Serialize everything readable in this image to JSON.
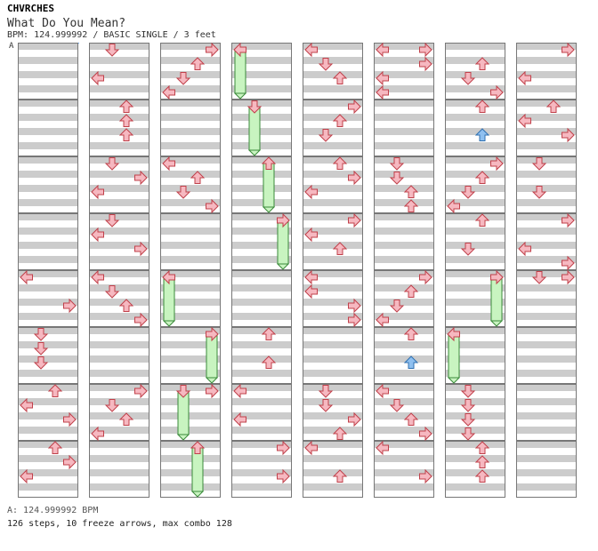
{
  "header": {
    "artist": "CHVRCHES",
    "title": "What Do You Mean?",
    "meta": "BPM: 124.999992 / BASIC SINGLE / 3 feet",
    "bpm_marker": "A"
  },
  "footer": {
    "bpm_line": "A: 124.999992 BPM",
    "stats_line": "126 steps, 10 freeze arrows, max combo 128"
  },
  "chart_data": {
    "type": "stepchart",
    "columns": 8,
    "measures_per_column": 8,
    "lanes": [
      "left",
      "down",
      "up",
      "right"
    ],
    "colors": {
      "tap": "#f6b8c0",
      "tap_stroke": "#c0404a",
      "shock": "#8fc0f0",
      "shock_stroke": "#3070b0",
      "freeze": "#c8f4c0",
      "freeze_stroke": "#3a8a3a",
      "stripe": "#cccccc"
    },
    "notes": [
      {
        "c": 0,
        "m": 4,
        "b": 0,
        "d": "left"
      },
      {
        "c": 0,
        "m": 4,
        "b": 2,
        "d": "right"
      },
      {
        "c": 0,
        "m": 5,
        "b": 0,
        "d": "down"
      },
      {
        "c": 0,
        "m": 5,
        "b": 1,
        "d": "down"
      },
      {
        "c": 0,
        "m": 5,
        "b": 2,
        "d": "down"
      },
      {
        "c": 0,
        "m": 6,
        "b": 0,
        "d": "up"
      },
      {
        "c": 0,
        "m": 6,
        "b": 1,
        "d": "left"
      },
      {
        "c": 0,
        "m": 6,
        "b": 2,
        "d": "right"
      },
      {
        "c": 0,
        "m": 7,
        "b": 0,
        "d": "up"
      },
      {
        "c": 0,
        "m": 7,
        "b": 1,
        "d": "right"
      },
      {
        "c": 0,
        "m": 7,
        "b": 2,
        "d": "left"
      },
      {
        "c": 1,
        "m": 0,
        "b": 0,
        "d": "down"
      },
      {
        "c": 1,
        "m": 0,
        "b": 2,
        "d": "left"
      },
      {
        "c": 1,
        "m": 1,
        "b": 0,
        "d": "up"
      },
      {
        "c": 1,
        "m": 1,
        "b": 1,
        "d": "up"
      },
      {
        "c": 1,
        "m": 1,
        "b": 2,
        "d": "up"
      },
      {
        "c": 1,
        "m": 2,
        "b": 0,
        "d": "down"
      },
      {
        "c": 1,
        "m": 2,
        "b": 1,
        "d": "right"
      },
      {
        "c": 1,
        "m": 2,
        "b": 2,
        "d": "left"
      },
      {
        "c": 1,
        "m": 3,
        "b": 0,
        "d": "down"
      },
      {
        "c": 1,
        "m": 3,
        "b": 1,
        "d": "left"
      },
      {
        "c": 1,
        "m": 3,
        "b": 2,
        "d": "right"
      },
      {
        "c": 1,
        "m": 4,
        "b": 0,
        "d": "left"
      },
      {
        "c": 1,
        "m": 4,
        "b": 1,
        "d": "down"
      },
      {
        "c": 1,
        "m": 4,
        "b": 2,
        "d": "up"
      },
      {
        "c": 1,
        "m": 4,
        "b": 3,
        "d": "right"
      },
      {
        "c": 1,
        "m": 6,
        "b": 0,
        "d": "right"
      },
      {
        "c": 1,
        "m": 6,
        "b": 1,
        "d": "down"
      },
      {
        "c": 1,
        "m": 6,
        "b": 2,
        "d": "up"
      },
      {
        "c": 1,
        "m": 6,
        "b": 3,
        "d": "left"
      },
      {
        "c": 2,
        "m": 0,
        "b": 0,
        "d": "right"
      },
      {
        "c": 2,
        "m": 0,
        "b": 1,
        "d": "up"
      },
      {
        "c": 2,
        "m": 0,
        "b": 2,
        "d": "down"
      },
      {
        "c": 2,
        "m": 0,
        "b": 3,
        "d": "left"
      },
      {
        "c": 2,
        "m": 2,
        "b": 0,
        "d": "left"
      },
      {
        "c": 2,
        "m": 2,
        "b": 1,
        "d": "up"
      },
      {
        "c": 2,
        "m": 2,
        "b": 2,
        "d": "down"
      },
      {
        "c": 2,
        "m": 2,
        "b": 3,
        "d": "right"
      },
      {
        "c": 2,
        "m": 6,
        "b": 0,
        "d": "right"
      },
      {
        "c": 3,
        "m": 5,
        "b": 0,
        "d": "up"
      },
      {
        "c": 3,
        "m": 5,
        "b": 2,
        "d": "up"
      },
      {
        "c": 3,
        "m": 6,
        "b": 0,
        "d": "left"
      },
      {
        "c": 3,
        "m": 6,
        "b": 2,
        "d": "left"
      },
      {
        "c": 3,
        "m": 7,
        "b": 0,
        "d": "right"
      },
      {
        "c": 3,
        "m": 7,
        "b": 2,
        "d": "right"
      },
      {
        "c": 4,
        "m": 0,
        "b": 0,
        "d": "left"
      },
      {
        "c": 4,
        "m": 0,
        "b": 1,
        "d": "down"
      },
      {
        "c": 4,
        "m": 0,
        "b": 2,
        "d": "up"
      },
      {
        "c": 4,
        "m": 1,
        "b": 0,
        "d": "right"
      },
      {
        "c": 4,
        "m": 1,
        "b": 1,
        "d": "up"
      },
      {
        "c": 4,
        "m": 1,
        "b": 2,
        "d": "down"
      },
      {
        "c": 4,
        "m": 2,
        "b": 0,
        "d": "up"
      },
      {
        "c": 4,
        "m": 2,
        "b": 1,
        "d": "right"
      },
      {
        "c": 4,
        "m": 2,
        "b": 2,
        "d": "left"
      },
      {
        "c": 4,
        "m": 3,
        "b": 0,
        "d": "right"
      },
      {
        "c": 4,
        "m": 3,
        "b": 1,
        "d": "left"
      },
      {
        "c": 4,
        "m": 3,
        "b": 2,
        "d": "up"
      },
      {
        "c": 4,
        "m": 4,
        "b": 0,
        "d": "left"
      },
      {
        "c": 4,
        "m": 4,
        "b": 1,
        "d": "left"
      },
      {
        "c": 4,
        "m": 4,
        "b": 2,
        "d": "right"
      },
      {
        "c": 4,
        "m": 4,
        "b": 3,
        "d": "right"
      },
      {
        "c": 4,
        "m": 6,
        "b": 0,
        "d": "down"
      },
      {
        "c": 4,
        "m": 6,
        "b": 1,
        "d": "down"
      },
      {
        "c": 4,
        "m": 6,
        "b": 2,
        "d": "right"
      },
      {
        "c": 4,
        "m": 6,
        "b": 3,
        "d": "up"
      },
      {
        "c": 4,
        "m": 7,
        "b": 0,
        "d": "left"
      },
      {
        "c": 4,
        "m": 7,
        "b": 2,
        "d": "up"
      },
      {
        "c": 5,
        "m": 0,
        "b": 0,
        "d": "right"
      },
      {
        "c": 5,
        "m": 0,
        "b": 0,
        "d": "left"
      },
      {
        "c": 5,
        "m": 0,
        "b": 1,
        "d": "right"
      },
      {
        "c": 5,
        "m": 0,
        "b": 2,
        "d": "left"
      },
      {
        "c": 5,
        "m": 0,
        "b": 3,
        "d": "left"
      },
      {
        "c": 5,
        "m": 2,
        "b": 0,
        "d": "down"
      },
      {
        "c": 5,
        "m": 2,
        "b": 1,
        "d": "down"
      },
      {
        "c": 5,
        "m": 2,
        "b": 2,
        "d": "up"
      },
      {
        "c": 5,
        "m": 2,
        "b": 3,
        "d": "up"
      },
      {
        "c": 5,
        "m": 4,
        "b": 0,
        "d": "right"
      },
      {
        "c": 5,
        "m": 4,
        "b": 1,
        "d": "up"
      },
      {
        "c": 5,
        "m": 4,
        "b": 2,
        "d": "down"
      },
      {
        "c": 5,
        "m": 4,
        "b": 3,
        "d": "left"
      },
      {
        "c": 5,
        "m": 5,
        "b": 0,
        "d": "up"
      },
      {
        "c": 5,
        "m": 5,
        "b": 2,
        "d": "up",
        "shock": true
      },
      {
        "c": 5,
        "m": 6,
        "b": 0,
        "d": "left"
      },
      {
        "c": 5,
        "m": 6,
        "b": 1,
        "d": "down"
      },
      {
        "c": 5,
        "m": 6,
        "b": 2,
        "d": "up"
      },
      {
        "c": 5,
        "m": 6,
        "b": 3,
        "d": "right"
      },
      {
        "c": 5,
        "m": 7,
        "b": 0,
        "d": "left"
      },
      {
        "c": 5,
        "m": 7,
        "b": 2,
        "d": "right"
      },
      {
        "c": 6,
        "m": 0,
        "b": 1,
        "d": "up"
      },
      {
        "c": 6,
        "m": 0,
        "b": 2,
        "d": "down"
      },
      {
        "c": 6,
        "m": 0,
        "b": 3,
        "d": "right"
      },
      {
        "c": 6,
        "m": 1,
        "b": 0,
        "d": "up"
      },
      {
        "c": 6,
        "m": 1,
        "b": 2,
        "d": "up",
        "shock": true
      },
      {
        "c": 6,
        "m": 2,
        "b": 0,
        "d": "right"
      },
      {
        "c": 6,
        "m": 2,
        "b": 1,
        "d": "up"
      },
      {
        "c": 6,
        "m": 2,
        "b": 2,
        "d": "down"
      },
      {
        "c": 6,
        "m": 2,
        "b": 3,
        "d": "left"
      },
      {
        "c": 6,
        "m": 3,
        "b": 0,
        "d": "up"
      },
      {
        "c": 6,
        "m": 3,
        "b": 2,
        "d": "down"
      },
      {
        "c": 6,
        "m": 6,
        "b": 0,
        "d": "down"
      },
      {
        "c": 6,
        "m": 6,
        "b": 1,
        "d": "down"
      },
      {
        "c": 6,
        "m": 6,
        "b": 2,
        "d": "down"
      },
      {
        "c": 6,
        "m": 6,
        "b": 3,
        "d": "down"
      },
      {
        "c": 6,
        "m": 7,
        "b": 0,
        "d": "up"
      },
      {
        "c": 6,
        "m": 7,
        "b": 1,
        "d": "up"
      },
      {
        "c": 6,
        "m": 7,
        "b": 2,
        "d": "up"
      },
      {
        "c": 7,
        "m": 0,
        "b": 0,
        "d": "right"
      },
      {
        "c": 7,
        "m": 0,
        "b": 2,
        "d": "left"
      },
      {
        "c": 7,
        "m": 1,
        "b": 0,
        "d": "up"
      },
      {
        "c": 7,
        "m": 1,
        "b": 1,
        "d": "left"
      },
      {
        "c": 7,
        "m": 1,
        "b": 2,
        "d": "right"
      },
      {
        "c": 7,
        "m": 2,
        "b": 0,
        "d": "down"
      },
      {
        "c": 7,
        "m": 2,
        "b": 2,
        "d": "down"
      },
      {
        "c": 7,
        "m": 3,
        "b": 0,
        "d": "right"
      },
      {
        "c": 7,
        "m": 3,
        "b": 2,
        "d": "left"
      },
      {
        "c": 7,
        "m": 3,
        "b": 3,
        "d": "right"
      },
      {
        "c": 7,
        "m": 4,
        "b": 0,
        "d": "down"
      },
      {
        "c": 7,
        "m": 4,
        "b": 0,
        "d": "right"
      }
    ],
    "freezes": [
      {
        "c": 3,
        "m": 0,
        "b0": 0,
        "b1": 3,
        "d": "left"
      },
      {
        "c": 3,
        "m": 1,
        "b0": 0,
        "b1": 3,
        "d": "down"
      },
      {
        "c": 3,
        "m": 2,
        "b0": 0,
        "b1": 3,
        "d": "up"
      },
      {
        "c": 3,
        "m": 3,
        "b0": 0,
        "b1": 3,
        "d": "right"
      },
      {
        "c": 2,
        "m": 4,
        "b0": 0,
        "b1": 3,
        "d": "left"
      },
      {
        "c": 2,
        "m": 5,
        "b0": 0,
        "b1": 3,
        "d": "right"
      },
      {
        "c": 2,
        "m": 6,
        "b0": 0,
        "b1": 3,
        "d": "down"
      },
      {
        "c": 2,
        "m": 7,
        "b0": 0,
        "b1": 3,
        "d": "up"
      },
      {
        "c": 6,
        "m": 4,
        "b0": 0,
        "b1": 3,
        "d": "right"
      },
      {
        "c": 6,
        "m": 5,
        "b0": 0,
        "b1": 3,
        "d": "left"
      }
    ]
  }
}
